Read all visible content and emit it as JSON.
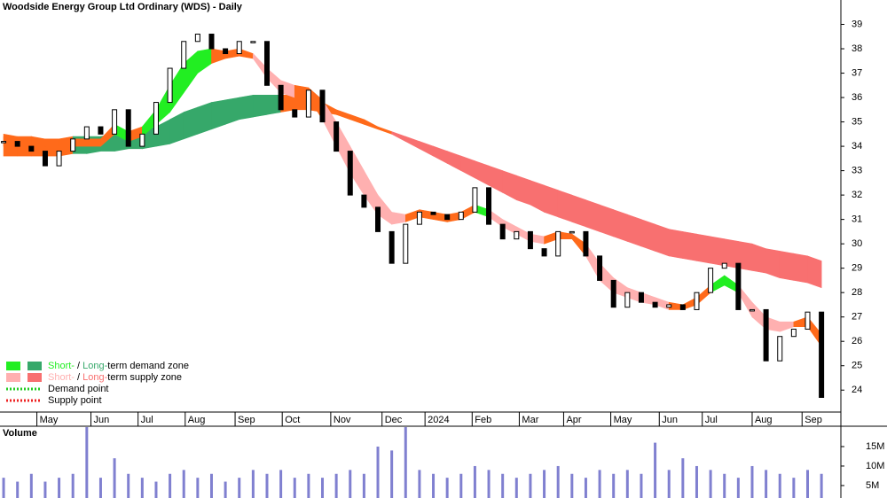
{
  "chart_data": {
    "type": "candlestick",
    "title": "Woodside Energy Group Ltd Ordinary (WDS) - Daily",
    "ylim": [
      23.1,
      40.0
    ],
    "yticks": [
      24,
      25,
      26,
      27,
      28,
      29,
      30,
      31,
      32,
      33,
      34,
      35,
      36,
      37,
      38,
      39
    ],
    "xlim": [
      -0.26,
      60.4
    ],
    "xticks": [
      {
        "value": 2.4,
        "label": "May"
      },
      {
        "value": 6.3,
        "label": "Jun"
      },
      {
        "value": 9.7,
        "label": "Jul"
      },
      {
        "value": 13.1,
        "label": "Aug"
      },
      {
        "value": 16.7,
        "label": "Sep"
      },
      {
        "value": 20.1,
        "label": "Oct"
      },
      {
        "value": 23.6,
        "label": "Nov"
      },
      {
        "value": 27.3,
        "label": "Dec"
      },
      {
        "value": 30.4,
        "label": "2024"
      },
      {
        "value": 33.8,
        "label": "Feb"
      },
      {
        "value": 37.2,
        "label": "Mar"
      },
      {
        "value": 40.4,
        "label": "Apr"
      },
      {
        "value": 43.8,
        "label": "May"
      },
      {
        "value": 47.3,
        "label": "Jun"
      },
      {
        "value": 50.4,
        "label": "Jul"
      },
      {
        "value": 54.0,
        "label": "Aug"
      },
      {
        "value": 57.6,
        "label": "Sep"
      }
    ],
    "values": [
      34.2,
      34.0,
      33.8,
      33.2,
      33.8,
      34.3,
      34.8,
      34.5,
      35.5,
      34.0,
      34.5,
      35.8,
      37.2,
      38.3,
      38.6,
      38.0,
      37.8,
      38.3,
      38.3,
      36.5,
      35.5,
      35.2,
      36.3,
      35.0,
      33.8,
      32.0,
      31.5,
      30.5,
      29.2,
      30.8,
      31.3,
      31.2,
      31.0,
      31.3,
      32.3,
      30.8,
      30.2,
      30.5,
      29.8,
      29.5,
      30.5,
      30.5,
      29.5,
      28.5,
      27.4,
      28.0,
      27.6,
      27.4,
      27.5,
      27.3,
      28.0,
      29.0,
      29.2,
      27.3,
      27.3,
      25.2,
      26.2,
      26.5,
      27.2,
      23.7
    ],
    "up_color": "#ffffff",
    "down_color": "#000000",
    "long_band": {
      "upper": [
        34.5,
        34.4,
        34.4,
        34.3,
        34.3,
        34.4,
        34.4,
        34.4,
        34.5,
        34.5,
        34.6,
        34.8,
        35.1,
        35.4,
        35.6,
        35.8,
        35.9,
        36.0,
        36.1,
        36.1,
        36.1,
        36.1,
        36.0,
        35.8,
        35.5,
        35.3,
        35.1,
        34.8,
        34.6,
        34.4,
        34.2,
        34.0,
        33.8,
        33.6,
        33.4,
        33.2,
        33.0,
        32.8,
        32.6,
        32.4,
        32.2,
        32.0,
        31.8,
        31.6,
        31.4,
        31.2,
        31.0,
        30.8,
        30.6,
        30.5,
        30.4,
        30.3,
        30.2,
        30.1,
        30.0,
        29.8,
        29.7,
        29.6,
        29.5,
        29.3
      ],
      "lower": [
        33.6,
        33.6,
        33.6,
        33.6,
        33.6,
        33.7,
        33.7,
        33.8,
        33.8,
        33.9,
        33.9,
        34.0,
        34.1,
        34.3,
        34.5,
        34.7,
        34.9,
        35.1,
        35.2,
        35.3,
        35.4,
        35.5,
        35.5,
        35.4,
        35.3,
        35.1,
        34.9,
        34.7,
        34.5,
        34.2,
        33.9,
        33.6,
        33.3,
        33.0,
        32.7,
        32.4,
        32.1,
        31.8,
        31.6,
        31.3,
        31.1,
        30.9,
        30.7,
        30.5,
        30.3,
        30.1,
        29.9,
        29.7,
        29.5,
        29.4,
        29.3,
        29.2,
        29.1,
        29.0,
        28.9,
        28.8,
        28.6,
        28.5,
        28.4,
        28.2
      ],
      "colors": [
        "#ff6a1a",
        "#ff6a1a",
        "#ff6a1a",
        "#ff6a1a",
        "#ff6a1a",
        "#36a86a",
        "#36a86a",
        "#36a86a",
        "#36a86a",
        "#36a86a",
        "#36a86a",
        "#36a86a",
        "#36a86a",
        "#36a86a",
        "#36a86a",
        "#36a86a",
        "#36a86a",
        "#36a86a",
        "#36a86a",
        "#36a86a",
        "#ff6a1a",
        "#ff6a1a",
        "#ff6a1a",
        "#ff6a1a",
        "#ff6a1a",
        "#ff6a1a",
        "#ff6a1a",
        "#ff6a1a",
        "#f87070",
        "#f87070",
        "#f87070",
        "#f87070",
        "#f87070",
        "#f87070",
        "#f87070",
        "#f87070",
        "#f87070",
        "#f87070",
        "#f87070",
        "#f87070",
        "#f87070",
        "#f87070",
        "#f87070",
        "#f87070",
        "#f87070",
        "#f87070",
        "#f87070",
        "#f87070",
        "#f87070",
        "#f87070",
        "#f87070",
        "#f87070",
        "#f87070",
        "#f87070",
        "#f87070",
        "#f87070",
        "#f87070",
        "#f87070",
        "#f87070",
        "#f87070"
      ]
    },
    "short_band": {
      "upper": [
        34.4,
        34.3,
        34.3,
        34.3,
        34.3,
        34.3,
        34.3,
        34.3,
        34.9,
        34.6,
        34.8,
        35.5,
        36.5,
        37.4,
        37.9,
        38.0,
        37.9,
        38.0,
        37.8,
        37.2,
        36.7,
        36.5,
        36.4,
        35.9,
        35.0,
        34.0,
        33.0,
        32.0,
        31.3,
        31.2,
        31.4,
        31.3,
        31.2,
        31.3,
        31.6,
        31.4,
        31.0,
        30.7,
        30.4,
        30.3,
        30.5,
        30.4,
        30.0,
        29.2,
        28.6,
        28.2,
        28.0,
        27.8,
        27.6,
        27.5,
        27.8,
        28.3,
        28.7,
        28.3,
        27.6,
        27.0,
        26.8,
        26.8,
        27.0,
        26.3
      ],
      "lower": [
        34.0,
        34.0,
        34.0,
        34.0,
        34.0,
        34.0,
        34.0,
        34.0,
        34.5,
        34.2,
        34.4,
        34.9,
        35.4,
        36.2,
        37.0,
        37.4,
        37.6,
        37.7,
        37.6,
        36.8,
        36.2,
        36.0,
        36.0,
        35.1,
        34.0,
        32.9,
        32.0,
        31.2,
        30.8,
        30.9,
        31.1,
        31.0,
        30.9,
        31.0,
        31.3,
        31.1,
        30.7,
        30.4,
        30.1,
        30.0,
        30.2,
        30.2,
        29.5,
        28.5,
        28.0,
        27.8,
        27.6,
        27.5,
        27.3,
        27.3,
        27.5,
        28.0,
        28.3,
        28.0,
        27.0,
        26.5,
        26.4,
        26.6,
        26.6,
        25.8
      ],
      "colors": [
        "#ff6a1a",
        "#ff6a1a",
        "#ff6a1a",
        "#ff6a1a",
        "#ff6a1a",
        "#ff6a1a",
        "#ff6a1a",
        "#ff6a1a",
        "#22ee22",
        "#ff6a1a",
        "#22ee22",
        "#22ee22",
        "#22ee22",
        "#22ee22",
        "#22ee22",
        "#ff6a1a",
        "#ff6a1a",
        "#ff6a1a",
        "#ffb0b0",
        "#ffb0b0",
        "#ffb0b0",
        "#ff6a1a",
        "#ff6a1a",
        "#ffb0b0",
        "#ffb0b0",
        "#ffb0b0",
        "#ffb0b0",
        "#ffb0b0",
        "#ffb0b0",
        "#ff6a1a",
        "#ff6a1a",
        "#ff6a1a",
        "#ff6a1a",
        "#ff6a1a",
        "#22ee22",
        "#ffb0b0",
        "#ffb0b0",
        "#ffb0b0",
        "#ffb0b0",
        "#ff6a1a",
        "#ff6a1a",
        "#ff6a1a",
        "#ffb0b0",
        "#ffb0b0",
        "#ffb0b0",
        "#ffb0b0",
        "#ffb0b0",
        "#ffb0b0",
        "#ff6a1a",
        "#ff6a1a",
        "#ff6a1a",
        "#22ee22",
        "#22ee22",
        "#ffb0b0",
        "#ffb0b0",
        "#ffb0b0",
        "#ffb0b0",
        "#ff6a1a",
        "#ff6a1a",
        "#ffb0b0"
      ]
    },
    "legend": [
      {
        "swatches": [
          "#22ee22",
          "#36a86a"
        ],
        "parts": [
          {
            "text": "Short-",
            "color": "#22ee22"
          },
          {
            "text": " / ",
            "color": "#000000"
          },
          {
            "text": "Long-",
            "color": "#36a86a"
          },
          {
            "text": "term demand zone",
            "color": "#000000"
          }
        ]
      },
      {
        "swatches": [
          "#ffb0b0",
          "#f87070"
        ],
        "parts": [
          {
            "text": "Short-",
            "color": "#ffb0b0"
          },
          {
            "text": " / ",
            "color": "#000000"
          },
          {
            "text": "Long-",
            "color": "#f87070"
          },
          {
            "text": "term supply zone",
            "color": "#000000"
          }
        ]
      },
      {
        "dotted": "#22cc22",
        "parts": [
          {
            "text": "Demand point",
            "color": "#000000"
          }
        ]
      },
      {
        "dotted": "#ee2222",
        "parts": [
          {
            "text": "Supply point",
            "color": "#000000"
          }
        ]
      }
    ],
    "volume": {
      "title": "Volume",
      "color": "#8080d0",
      "ylim": [
        1.8,
        20.0
      ],
      "yticks": [
        {
          "value": 5,
          "label": "5M"
        },
        {
          "value": 10,
          "label": "10M"
        },
        {
          "value": 15,
          "label": "15M"
        }
      ],
      "values": [
        7,
        6,
        8,
        6,
        7,
        8,
        20,
        7,
        12,
        8,
        7,
        6,
        8,
        9,
        7,
        8,
        6,
        7,
        9,
        8,
        9,
        7,
        8,
        7,
        8,
        9,
        8,
        15,
        14,
        20,
        9,
        8,
        7,
        8,
        10,
        9,
        8,
        7,
        8,
        9,
        10,
        8,
        7,
        9,
        8,
        9,
        8,
        16,
        9,
        12,
        10,
        9,
        8,
        7,
        10,
        9,
        8,
        7,
        9,
        8
      ]
    }
  }
}
